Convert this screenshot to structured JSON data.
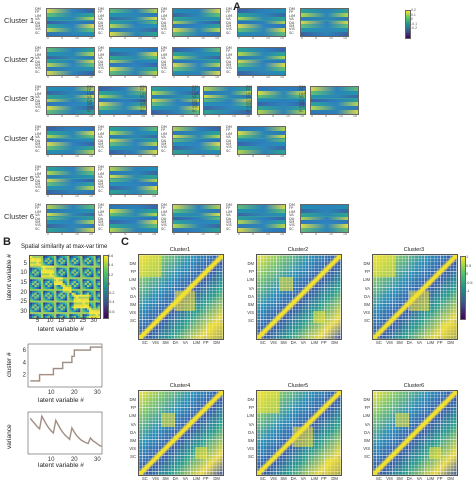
{
  "panel_labels": {
    "a": "A",
    "b": "B",
    "c": "C"
  },
  "panel_a": {
    "row_labels": [
      "DM",
      "FP",
      "LIM",
      "VA",
      "DA",
      "SM",
      "VIS",
      "SC"
    ],
    "x_ticks": [
      "0",
      "5",
      "10",
      "15"
    ],
    "colorbar_ticks": [
      "0.2",
      "0.1",
      "0",
      "-0.1",
      "-0.2"
    ],
    "clusters": [
      {
        "label": "Cluster 1",
        "count": 5
      },
      {
        "label": "Cluster 2",
        "count": 4
      },
      {
        "label": "Cluster 3",
        "count": 6
      },
      {
        "label": "Cluster 4",
        "count": 4
      },
      {
        "label": "Cluster 5",
        "count": 2
      },
      {
        "label": "Cluster 6",
        "count": 5
      }
    ]
  },
  "panel_b": {
    "heatmap": {
      "title": "Spatial similarity at max-var time",
      "xlabel": "latent variable #",
      "ylabel": "latent variable #",
      "x_ticks": [
        "5",
        "10",
        "15",
        "20",
        "25",
        "30"
      ],
      "y_ticks": [
        "5",
        "10",
        "15",
        "20",
        "25",
        "30"
      ],
      "colorbar_ticks": [
        "0.6",
        "0.4",
        "0.2",
        "0",
        "-0.2",
        "-0.4",
        "-0.6"
      ]
    },
    "cluster_plot": {
      "xlabel": "latent variable #",
      "ylabel": "cluster #",
      "x_ticks": [
        "10",
        "20",
        "30"
      ],
      "y_ticks": [
        "6",
        "4",
        "2"
      ]
    },
    "variance_plot": {
      "xlabel": "latent variable #",
      "ylabel": "variance",
      "x_ticks": [
        "10",
        "20",
        "30"
      ]
    }
  },
  "panel_c": {
    "row_labels": [
      "DM",
      "FP",
      "LIM",
      "VA",
      "DA",
      "SM",
      "VIS",
      "SC"
    ],
    "col_labels": [
      "SC",
      "VIS",
      "SM",
      "DA",
      "VA",
      "LIM",
      "FP",
      "DM"
    ],
    "colorbar_ticks": [
      "1",
      "0.5",
      "0",
      "-0.5",
      "-1"
    ],
    "matrices": [
      {
        "title": "Cluster1"
      },
      {
        "title": "Cluster2"
      },
      {
        "title": "Cluster3"
      },
      {
        "title": "Cluster4"
      },
      {
        "title": "Cluster5"
      },
      {
        "title": "Cluster6"
      }
    ]
  },
  "chart_data": [
    {
      "type": "line",
      "title": "",
      "xlabel": "latent variable #",
      "ylabel": "cluster #",
      "xlim": [
        0,
        32
      ],
      "ylim": [
        0,
        7
      ],
      "series": [
        {
          "x": [
            1,
            5,
            5,
            11,
            11,
            15,
            15,
            19,
            19,
            20,
            20,
            27,
            27,
            32
          ],
          "y": [
            1,
            1,
            2,
            2,
            3,
            3,
            4,
            4,
            5,
            5,
            6,
            6,
            6.5,
            6.5
          ]
        }
      ]
    },
    {
      "type": "line",
      "title": "",
      "xlabel": "latent variable #",
      "ylabel": "variance",
      "xlim": [
        0,
        32
      ],
      "ylim": [
        0,
        1
      ],
      "series": [
        {
          "x": [
            1,
            2,
            3,
            4,
            5,
            6,
            7,
            8,
            9,
            10,
            11,
            12,
            13,
            14,
            15,
            16,
            17,
            18,
            19,
            20,
            21,
            22,
            23,
            24,
            25,
            26,
            27,
            28,
            29,
            30,
            31,
            32
          ],
          "y": [
            0.85,
            0.78,
            0.72,
            0.65,
            0.6,
            0.9,
            0.8,
            0.7,
            0.62,
            0.55,
            0.5,
            0.8,
            0.7,
            0.6,
            0.52,
            0.45,
            0.4,
            0.35,
            0.62,
            0.52,
            0.44,
            0.38,
            0.33,
            0.3,
            0.27,
            0.25,
            0.38,
            0.32,
            0.28,
            0.24,
            0.2,
            0.18
          ]
        }
      ]
    }
  ]
}
